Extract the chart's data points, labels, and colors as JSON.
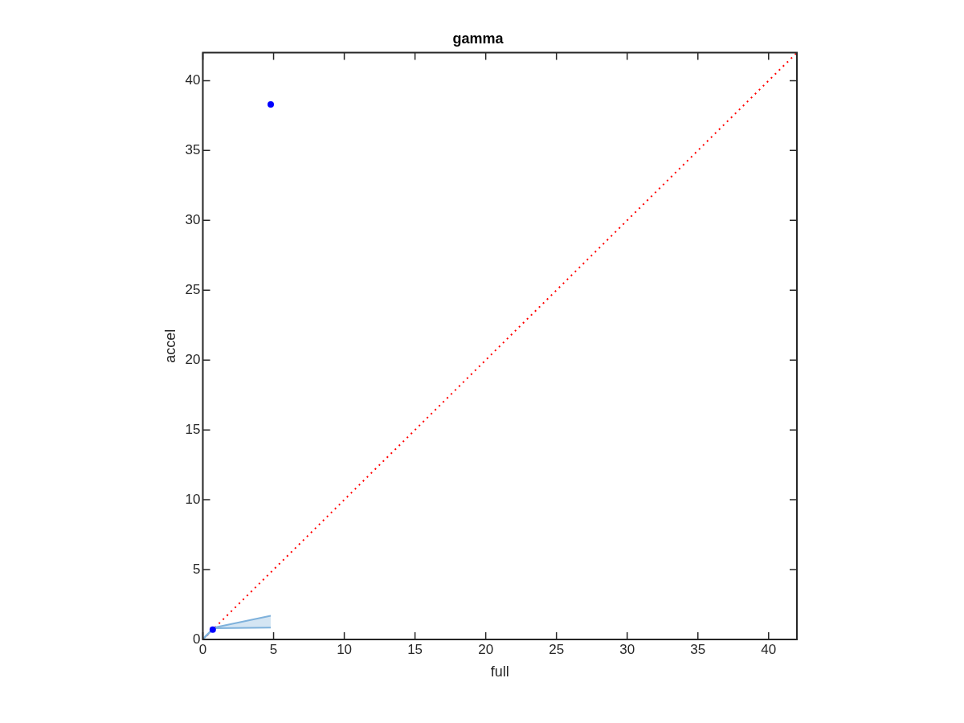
{
  "chart_data": {
    "type": "scatter",
    "title": "gamma",
    "xlabel": "full",
    "ylabel": "accel",
    "xlim": [
      0,
      42
    ],
    "ylim": [
      0,
      42
    ],
    "xticks": [
      0,
      5,
      10,
      15,
      20,
      25,
      30,
      35,
      40
    ],
    "yticks": [
      0,
      5,
      10,
      15,
      20,
      25,
      30,
      35,
      40
    ],
    "grid": false,
    "marker": "circle",
    "series": [
      {
        "type": "line",
        "color": "#7fb2dc",
        "x": [
          0,
          0.15,
          0.8,
          4.8
        ],
        "values": [
          0,
          0.15,
          0.8,
          0.85
        ],
        "marker": "none"
      },
      {
        "type": "line",
        "color": "#7fb2dc",
        "x": [
          0,
          0.15,
          0.8,
          4.8
        ],
        "values": [
          0,
          0.2,
          0.85,
          1.7
        ],
        "lower": [
          0,
          0.15,
          0.8,
          0.85
        ],
        "upper": [
          0,
          0.2,
          0.85,
          1.7
        ],
        "marker": "none"
      },
      {
        "type": "line",
        "color": "#ff0000",
        "x": [
          0,
          42
        ],
        "values": [
          0,
          42
        ],
        "line_style": "dotted",
        "marker": "none"
      },
      {
        "color": "#0000ff",
        "x": [
          0.7,
          4.8
        ],
        "values": [
          0.7,
          38.3
        ]
      }
    ]
  }
}
